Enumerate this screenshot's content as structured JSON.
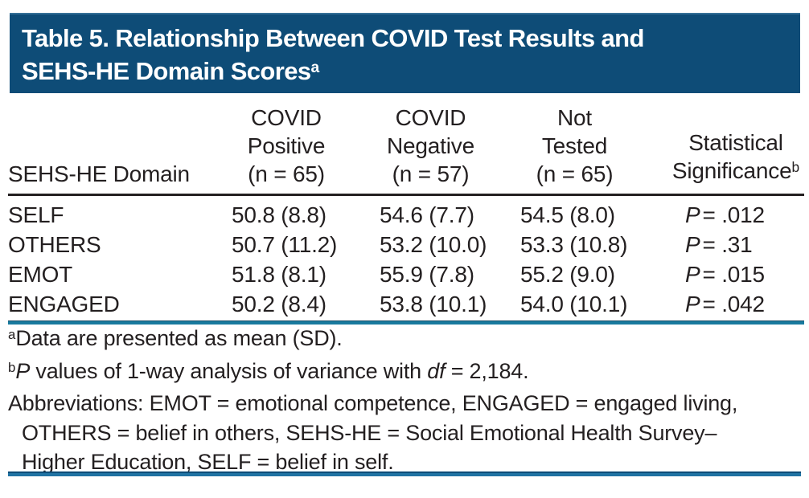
{
  "title": {
    "line1": "Table 5. Relationship Between COVID Test Results and",
    "line2": "SEHS-HE Domain Scores",
    "sup": "a"
  },
  "table": {
    "domain_header": "SEHS-HE Domain",
    "col_headers": [
      {
        "lines": [
          "COVID",
          "Positive",
          "(n = 65)"
        ]
      },
      {
        "lines": [
          "COVID",
          "Negative",
          "(n = 57)"
        ]
      },
      {
        "lines": [
          "Not",
          "Tested",
          "(n = 65)"
        ]
      },
      {
        "lines": [
          "Statistical",
          "Significance"
        ],
        "sup": "b"
      }
    ],
    "rows": [
      {
        "domain": "SELF",
        "positive": "50.8 (8.8)",
        "negative": "54.6 (7.7)",
        "not_tested": "54.5 (8.0)",
        "p": "P",
        "sig": "= .012"
      },
      {
        "domain": "OTHERS",
        "positive": "50.7 (11.2)",
        "negative": "53.2 (10.0)",
        "not_tested": "53.3 (10.8)",
        "p": "P",
        "sig": "= .31"
      },
      {
        "domain": "EMOT",
        "positive": "51.8 (8.1)",
        "negative": "55.9 (7.8)",
        "not_tested": "55.2 (9.0)",
        "p": "P",
        "sig": "= .015"
      },
      {
        "domain": "ENGAGED",
        "positive": "50.2 (8.4)",
        "negative": "53.8 (10.1)",
        "not_tested": "54.0 (10.1)",
        "p": "P",
        "sig": "= .042"
      }
    ]
  },
  "footnotes": {
    "a": {
      "marker": "a",
      "text": "Data are presented as mean (SD)."
    },
    "b": {
      "marker": "b",
      "p": "P",
      "text1": " values of 1-way analysis of variance with ",
      "df": "df",
      "text2": " = 2,184."
    },
    "abbreviations": {
      "line1": "Abbreviations: EMOT = emotional competence, ENGAGED = engaged living,",
      "line2": "OTHERS = belief in others, SEHS-HE = Social Emotional Health Survey–",
      "line3": "Higher Education, SELF = belief in self."
    }
  },
  "colors": {
    "banner_bg": "#0e4c77",
    "header_rule": "#231f20",
    "teal_rule": "#187a9e",
    "bottom_rule": "#2073a3",
    "text": "#231f20",
    "title_text": "#ffffff"
  }
}
